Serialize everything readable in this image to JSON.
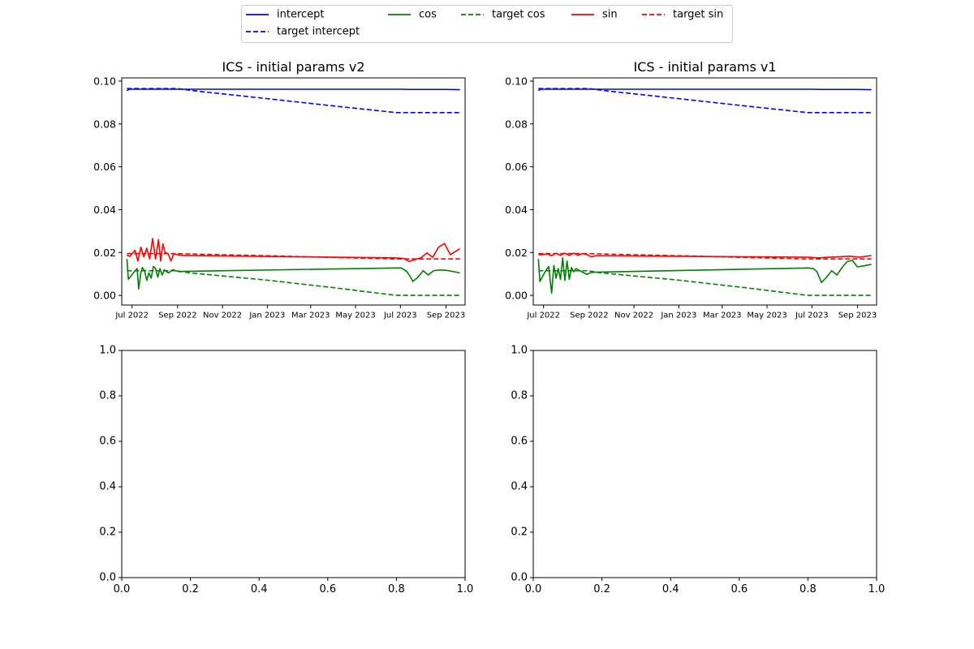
{
  "legend": {
    "placement": "top-center",
    "entries": [
      {
        "label": "intercept",
        "color": "#0000ff",
        "dash": "solid"
      },
      {
        "label": "target intercept",
        "color": "#0000ff",
        "dash": "dashed"
      },
      {
        "label": "cos",
        "color": "#008000",
        "dash": "solid"
      },
      {
        "label": "target cos",
        "color": "#008000",
        "dash": "dashed"
      },
      {
        "label": "sin",
        "color": "#ff0000",
        "dash": "solid"
      },
      {
        "label": "target sin",
        "color": "#ff0000",
        "dash": "dashed"
      }
    ]
  },
  "chart_data": [
    {
      "type": "line",
      "title": "ICS - initial params v2",
      "xlabel": "",
      "ylabel": "",
      "x_axis": "date",
      "xlim": [
        "2022-06-17",
        "2023-09-27"
      ],
      "ylim": [
        -0.0045,
        0.1015
      ],
      "yticks": [
        0.0,
        0.02,
        0.04,
        0.06,
        0.08,
        0.1
      ],
      "ytick_labels": [
        "0.00",
        "0.02",
        "0.04",
        "0.06",
        "0.08",
        "0.10"
      ],
      "xticks": [
        "2022-07-01",
        "2022-09-01",
        "2022-11-01",
        "2023-01-01",
        "2023-03-01",
        "2023-05-01",
        "2023-07-01",
        "2023-09-01"
      ],
      "xtick_labels": [
        "Jul 2022",
        "Sep 2022",
        "Nov 2022",
        "Jan 2023",
        "Mar 2023",
        "May 2023",
        "Jul 2023",
        "Sep 2023"
      ],
      "grid": false,
      "series": [
        {
          "name": "intercept",
          "color": "#0000ff",
          "dash": "solid",
          "x": [
            "2022-06-24",
            "2022-06-27",
            "2022-08-01",
            "2022-09-01",
            "2023-07-01",
            "2023-07-15",
            "2023-09-01",
            "2023-09-20"
          ],
          "y": [
            0.0955,
            0.0962,
            0.0962,
            0.0962,
            0.0962,
            0.0961,
            0.0961,
            0.096
          ]
        },
        {
          "name": "target intercept",
          "color": "#0000ff",
          "dash": "dashed",
          "x": [
            "2022-06-24",
            "2022-09-01",
            "2022-10-01",
            "2023-01-01",
            "2023-04-01",
            "2023-06-25",
            "2023-09-20"
          ],
          "y": [
            0.0965,
            0.0965,
            0.0952,
            0.0918,
            0.0884,
            0.0853,
            0.0853
          ]
        },
        {
          "name": "cos",
          "color": "#008000",
          "dash": "solid",
          "x": [
            "2022-06-24",
            "2022-06-26",
            "2022-07-04",
            "2022-07-08",
            "2022-07-10",
            "2022-07-13",
            "2022-07-15",
            "2022-07-18",
            "2022-07-21",
            "2022-07-24",
            "2022-07-27",
            "2022-07-30",
            "2022-08-02",
            "2022-08-05",
            "2022-08-08",
            "2022-08-11",
            "2022-08-14",
            "2022-08-17",
            "2022-08-20",
            "2022-08-23",
            "2022-08-26",
            "2022-08-29",
            "2022-09-01",
            "2022-09-04",
            "2022-09-07",
            "2023-06-26",
            "2023-07-02",
            "2023-07-06",
            "2023-07-10",
            "2023-07-14",
            "2023-07-18",
            "2023-07-25",
            "2023-08-01",
            "2023-08-08",
            "2023-08-15",
            "2023-08-22",
            "2023-08-29",
            "2023-09-05",
            "2023-09-20"
          ],
          "y": [
            0.017,
            0.0075,
            0.011,
            0.0125,
            0.003,
            0.0105,
            0.013,
            0.0115,
            0.007,
            0.0105,
            0.008,
            0.0135,
            0.0125,
            0.0085,
            0.0125,
            0.0095,
            0.012,
            0.011,
            0.0105,
            0.0115,
            0.012,
            0.0115,
            0.0113,
            0.011,
            0.0112,
            0.0128,
            0.0128,
            0.012,
            0.011,
            0.009,
            0.0065,
            0.0085,
            0.0115,
            0.0095,
            0.0115,
            0.0118,
            0.0118,
            0.0115,
            0.0105
          ]
        },
        {
          "name": "target cos",
          "color": "#008000",
          "dash": "dashed",
          "x": [
            "2022-06-24",
            "2022-08-31",
            "2022-09-15",
            "2023-01-01",
            "2023-04-01",
            "2023-06-25",
            "2023-09-20"
          ],
          "y": [
            0.0115,
            0.0115,
            0.0106,
            0.0071,
            0.0036,
            0.0,
            0.0
          ]
        },
        {
          "name": "sin",
          "color": "#ff0000",
          "dash": "solid",
          "x": [
            "2022-06-24",
            "2022-06-28",
            "2022-07-05",
            "2022-07-09",
            "2022-07-13",
            "2022-07-17",
            "2022-07-21",
            "2022-07-25",
            "2022-07-29",
            "2022-08-02",
            "2022-08-06",
            "2022-08-09",
            "2022-08-12",
            "2022-08-15",
            "2022-08-19",
            "2022-08-23",
            "2022-08-27",
            "2022-08-31",
            "2022-09-04",
            "2022-09-08",
            "2023-06-26",
            "2023-07-06",
            "2023-07-13",
            "2023-07-21",
            "2023-07-29",
            "2023-08-06",
            "2023-08-14",
            "2023-08-22",
            "2023-08-30",
            "2023-09-07",
            "2023-09-20"
          ],
          "y": [
            0.0188,
            0.0182,
            0.021,
            0.016,
            0.0225,
            0.018,
            0.022,
            0.017,
            0.0265,
            0.017,
            0.026,
            0.016,
            0.024,
            0.02,
            0.0195,
            0.016,
            0.0195,
            0.019,
            0.0188,
            0.0186,
            0.0175,
            0.0172,
            0.0158,
            0.0167,
            0.0175,
            0.0198,
            0.0178,
            0.0225,
            0.0242,
            0.019,
            0.0218
          ]
        },
        {
          "name": "target sin",
          "color": "#ff0000",
          "dash": "dashed",
          "x": [
            "2022-06-24",
            "2022-09-01",
            "2022-10-01",
            "2023-01-01",
            "2023-04-01",
            "2023-06-25",
            "2023-09-20"
          ],
          "y": [
            0.0195,
            0.0195,
            0.0192,
            0.0185,
            0.0177,
            0.017,
            0.017
          ]
        }
      ]
    },
    {
      "type": "line",
      "title": "ICS - initial params v1",
      "xlabel": "",
      "ylabel": "",
      "x_axis": "date",
      "xlim": [
        "2022-06-17",
        "2023-09-27"
      ],
      "ylim": [
        -0.0045,
        0.1015
      ],
      "yticks": [
        0.0,
        0.02,
        0.04,
        0.06,
        0.08,
        0.1
      ],
      "ytick_labels": [
        "0.00",
        "0.02",
        "0.04",
        "0.06",
        "0.08",
        "0.10"
      ],
      "xticks": [
        "2022-07-01",
        "2022-09-01",
        "2022-11-01",
        "2023-01-01",
        "2023-03-01",
        "2023-05-01",
        "2023-07-01",
        "2023-09-01"
      ],
      "xtick_labels": [
        "Jul 2022",
        "Sep 2022",
        "Nov 2022",
        "Jan 2023",
        "Mar 2023",
        "May 2023",
        "Jul 2023",
        "Sep 2023"
      ],
      "grid": false,
      "series": [
        {
          "name": "intercept",
          "color": "#0000ff",
          "dash": "solid",
          "x": [
            "2022-06-24",
            "2022-06-27",
            "2022-08-01",
            "2022-09-01",
            "2023-07-01",
            "2023-07-15",
            "2023-09-01",
            "2023-09-20"
          ],
          "y": [
            0.0955,
            0.0962,
            0.0962,
            0.0962,
            0.0962,
            0.0961,
            0.0961,
            0.096
          ]
        },
        {
          "name": "target intercept",
          "color": "#0000ff",
          "dash": "dashed",
          "x": [
            "2022-06-24",
            "2022-09-01",
            "2022-10-01",
            "2023-01-01",
            "2023-04-01",
            "2023-06-25",
            "2023-09-20"
          ],
          "y": [
            0.0965,
            0.0965,
            0.0952,
            0.0918,
            0.0884,
            0.0853,
            0.0853
          ]
        },
        {
          "name": "cos",
          "color": "#008000",
          "dash": "solid",
          "x": [
            "2022-06-24",
            "2022-06-26",
            "2022-07-04",
            "2022-07-08",
            "2022-07-12",
            "2022-07-15",
            "2022-07-18",
            "2022-07-21",
            "2022-07-24",
            "2022-07-27",
            "2022-07-30",
            "2022-08-02",
            "2022-08-05",
            "2022-08-08",
            "2022-08-11",
            "2022-08-14",
            "2022-08-17",
            "2022-08-21",
            "2022-08-25",
            "2022-08-29",
            "2022-09-02",
            "2022-09-07",
            "2023-06-26",
            "2023-07-03",
            "2023-07-08",
            "2023-07-14",
            "2023-07-21",
            "2023-07-28",
            "2023-08-04",
            "2023-08-11",
            "2023-08-18",
            "2023-08-25",
            "2023-09-01",
            "2023-09-10",
            "2023-09-20"
          ],
          "y": [
            0.017,
            0.0065,
            0.0115,
            0.0135,
            0.001,
            0.014,
            0.008,
            0.0125,
            0.0075,
            0.0175,
            0.007,
            0.016,
            0.0075,
            0.013,
            0.011,
            0.0125,
            0.012,
            0.0112,
            0.0105,
            0.0098,
            0.0105,
            0.0108,
            0.0128,
            0.0125,
            0.011,
            0.006,
            0.0085,
            0.0115,
            0.0095,
            0.013,
            0.0158,
            0.0163,
            0.0133,
            0.0138,
            0.0145
          ]
        },
        {
          "name": "target cos",
          "color": "#008000",
          "dash": "dashed",
          "x": [
            "2022-06-24",
            "2022-08-31",
            "2022-09-15",
            "2023-01-01",
            "2023-04-01",
            "2023-06-25",
            "2023-09-20"
          ],
          "y": [
            0.0115,
            0.0115,
            0.0106,
            0.0071,
            0.0036,
            0.0,
            0.0
          ]
        },
        {
          "name": "sin",
          "color": "#ff0000",
          "dash": "solid",
          "x": [
            "2022-06-24",
            "2022-06-30",
            "2022-07-06",
            "2022-07-12",
            "2022-07-18",
            "2022-07-24",
            "2022-07-30",
            "2022-08-05",
            "2022-08-11",
            "2022-08-17",
            "2022-08-23",
            "2022-08-29",
            "2022-09-04",
            "2022-09-10",
            "2023-06-26",
            "2023-07-10",
            "2023-07-24",
            "2023-08-07",
            "2023-08-21",
            "2023-09-04",
            "2023-09-20"
          ],
          "y": [
            0.019,
            0.019,
            0.0193,
            0.0185,
            0.0196,
            0.0187,
            0.0197,
            0.0186,
            0.0197,
            0.0187,
            0.0195,
            0.019,
            0.018,
            0.0185,
            0.0178,
            0.0175,
            0.0178,
            0.018,
            0.0183,
            0.0178,
            0.0186
          ]
        },
        {
          "name": "target sin",
          "color": "#ff0000",
          "dash": "dashed",
          "x": [
            "2022-06-24",
            "2022-09-01",
            "2022-10-01",
            "2023-01-01",
            "2023-04-01",
            "2023-06-25",
            "2023-09-20"
          ],
          "y": [
            0.0195,
            0.0195,
            0.0192,
            0.0185,
            0.0177,
            0.017,
            0.017
          ]
        }
      ]
    },
    {
      "type": "line",
      "title": "",
      "xlabel": "",
      "ylabel": "",
      "xlim": [
        0.0,
        1.0
      ],
      "ylim": [
        0.0,
        1.0
      ],
      "xticks": [
        0.0,
        0.2,
        0.4,
        0.6,
        0.8,
        1.0
      ],
      "xtick_labels": [
        "0.0",
        "0.2",
        "0.4",
        "0.6",
        "0.8",
        "1.0"
      ],
      "yticks": [
        0.0,
        0.2,
        0.4,
        0.6,
        0.8,
        1.0
      ],
      "ytick_labels": [
        "0.0",
        "0.2",
        "0.4",
        "0.6",
        "0.8",
        "1.0"
      ],
      "grid": false,
      "series": []
    },
    {
      "type": "line",
      "title": "",
      "xlabel": "",
      "ylabel": "",
      "xlim": [
        0.0,
        1.0
      ],
      "ylim": [
        0.0,
        1.0
      ],
      "xticks": [
        0.0,
        0.2,
        0.4,
        0.6,
        0.8,
        1.0
      ],
      "xtick_labels": [
        "0.0",
        "0.2",
        "0.4",
        "0.6",
        "0.8",
        "1.0"
      ],
      "yticks": [
        0.0,
        0.2,
        0.4,
        0.6,
        0.8,
        1.0
      ],
      "ytick_labels": [
        "0.0",
        "0.2",
        "0.4",
        "0.6",
        "0.8",
        "1.0"
      ],
      "grid": false,
      "series": []
    }
  ]
}
